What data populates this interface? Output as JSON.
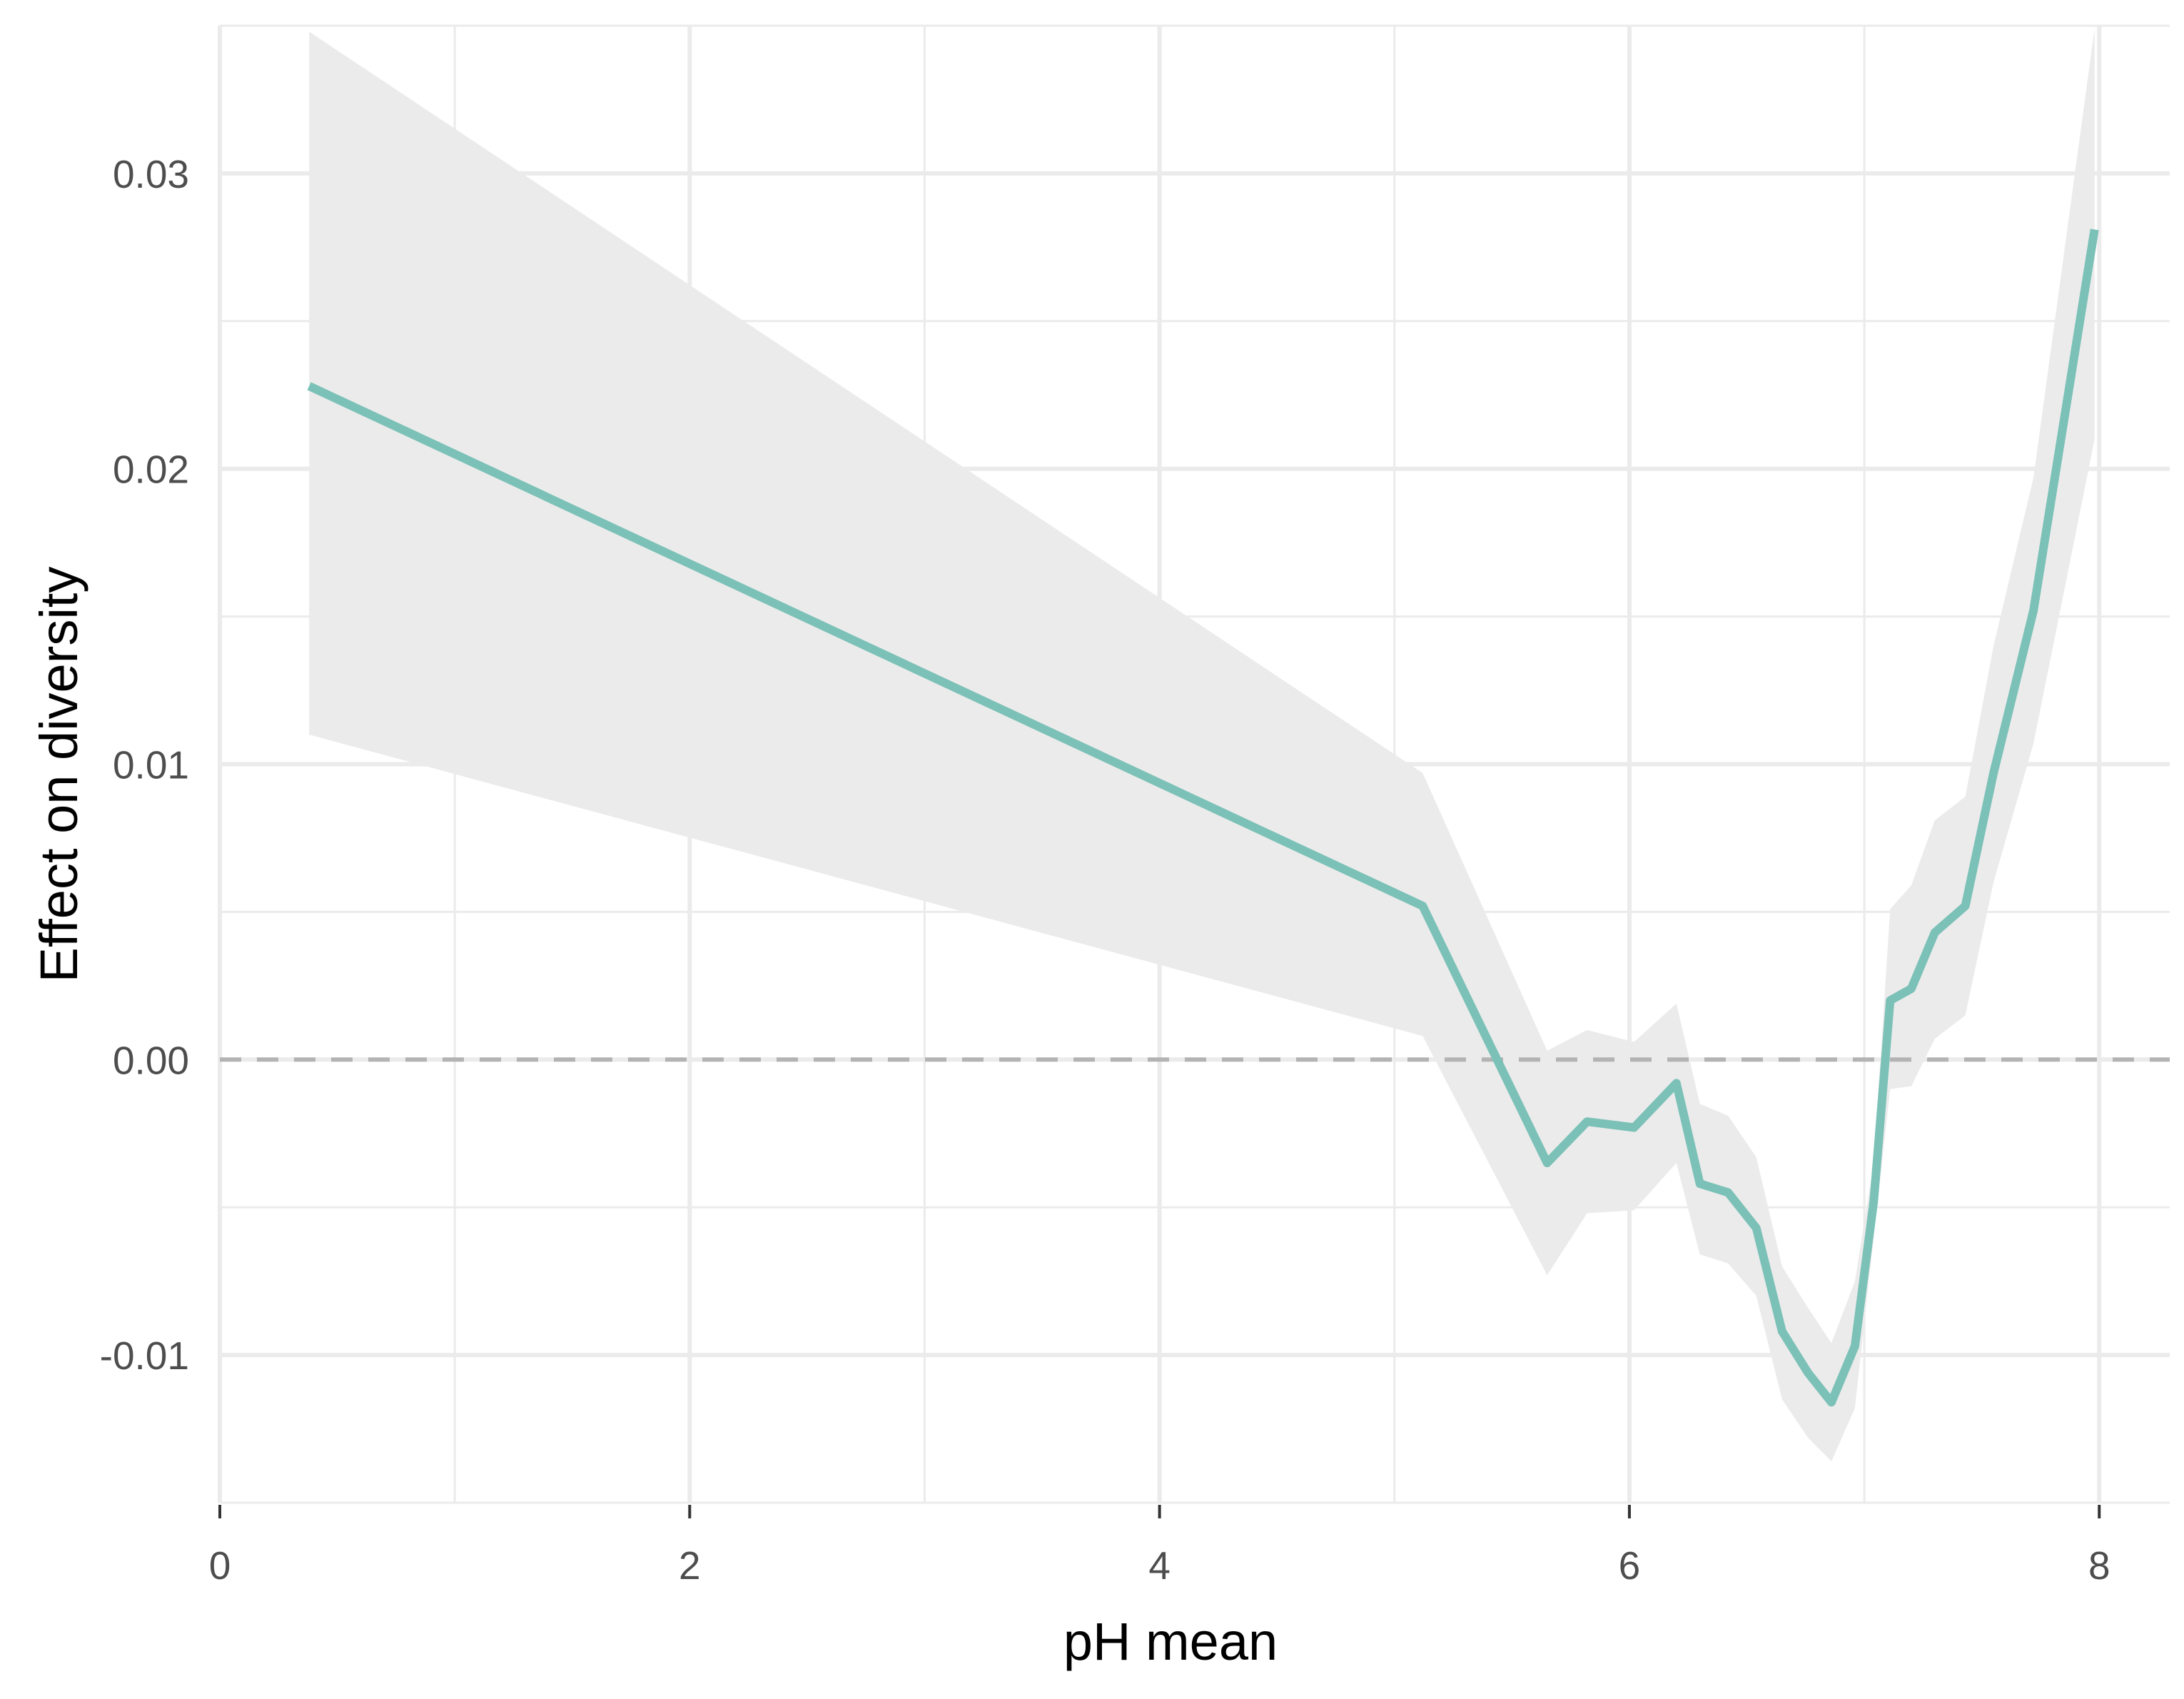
{
  "chart_data": {
    "type": "line",
    "title": "",
    "xlabel": "pH mean",
    "ylabel": "Effect on diversity",
    "xlim": [
      0,
      8.3
    ],
    "ylim": [
      -0.015,
      0.035
    ],
    "x_ticks": [
      0,
      2,
      4,
      6,
      8
    ],
    "x_tick_labels": [
      "0",
      "2",
      "4",
      "6",
      "8"
    ],
    "y_ticks": [
      -0.01,
      0.0,
      0.01,
      0.02,
      0.03
    ],
    "y_tick_labels": [
      "-0.01",
      "0.00",
      "0.01",
      "0.02",
      "0.03"
    ],
    "grid": true,
    "reference_line": {
      "y": 0.0,
      "style": "dashed"
    },
    "series": [
      {
        "x": [
          0.38,
          5.12,
          5.65,
          5.82,
          6.02,
          6.2,
          6.3,
          6.42,
          6.54,
          6.65,
          6.76,
          6.86,
          6.96,
          7.04,
          7.11,
          7.2,
          7.3,
          7.43,
          7.55,
          7.72,
          7.98
        ],
        "y": [
          0.0228,
          0.0052,
          -0.0035,
          -0.0021,
          -0.0023,
          -0.0008,
          -0.0042,
          -0.0045,
          -0.0057,
          -0.0092,
          -0.0106,
          -0.0116,
          -0.0097,
          -0.0048,
          0.002,
          0.0024,
          0.0043,
          0.0052,
          0.0097,
          0.0152,
          0.0281
        ],
        "lower": [
          0.011,
          0.0008,
          -0.0073,
          -0.0052,
          -0.0051,
          -0.0035,
          -0.0066,
          -0.0069,
          -0.008,
          -0.0115,
          -0.0128,
          -0.0136,
          -0.0118,
          -0.006,
          -0.001,
          -0.0009,
          0.0007,
          0.0015,
          0.006,
          0.0107,
          0.021
        ],
        "upper": [
          0.0348,
          0.0097,
          0.0003,
          0.001,
          0.0006,
          0.0019,
          -0.0015,
          -0.0019,
          -0.0033,
          -0.007,
          -0.0084,
          -0.0096,
          -0.0075,
          -0.0035,
          0.0051,
          0.0059,
          0.0081,
          0.0089,
          0.014,
          0.0197,
          0.0349
        ],
        "color": "#7bc1b7"
      }
    ],
    "colors": {
      "ribbon": "#ebebeb",
      "grid": "#ebebeb",
      "reference_line": "#b3b3b3"
    }
  }
}
